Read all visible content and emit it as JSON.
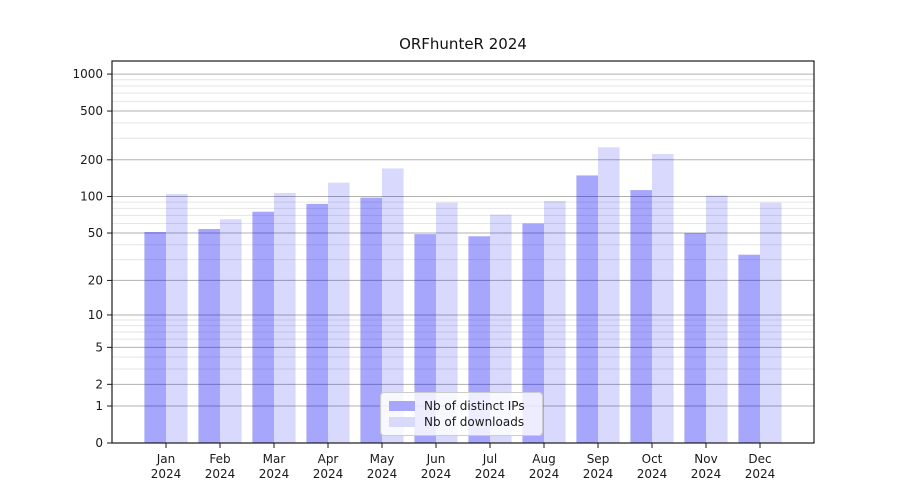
{
  "title": "ORFhunteR 2024",
  "chart_data": {
    "type": "bar",
    "title": "ORFhunteR 2024",
    "xlabel": "",
    "ylabel": "",
    "x_tick_line2": "2024",
    "categories": [
      "Jan",
      "Feb",
      "Mar",
      "Apr",
      "May",
      "Jun",
      "Jul",
      "Aug",
      "Sep",
      "Oct",
      "Nov",
      "Dec"
    ],
    "series": [
      {
        "name": "Nb of distinct IPs",
        "hex": "#a6a6fb",
        "fill": "rgba(0,0,245,0.35)",
        "values": [
          51,
          54,
          75,
          87,
          98,
          49,
          47,
          60,
          149,
          113,
          50,
          33
        ]
      },
      {
        "name": "Nb of downloads",
        "hex": "#d9d9fc",
        "fill": "rgba(0,0,245,0.15)",
        "values": [
          105,
          65,
          107,
          130,
          170,
          89,
          71,
          92,
          253,
          223,
          102,
          89
        ]
      }
    ],
    "y_scale": "log1p",
    "ylim": [
      0,
      1265
    ],
    "y_ticks": [
      0,
      1,
      2,
      5,
      10,
      20,
      50,
      100,
      200,
      500,
      1000
    ],
    "y_minor_ticks": [
      3,
      4,
      6,
      7,
      8,
      9,
      30,
      40,
      60,
      70,
      80,
      90,
      300,
      400,
      600,
      700,
      800,
      900
    ],
    "grid": true,
    "legend_position": "lower center",
    "colors": {
      "major_grid": "#b0b0b0",
      "minor_grid": "#e6e6e6",
      "axis": "#1a1a1a",
      "text": "#1a1a1a"
    }
  }
}
